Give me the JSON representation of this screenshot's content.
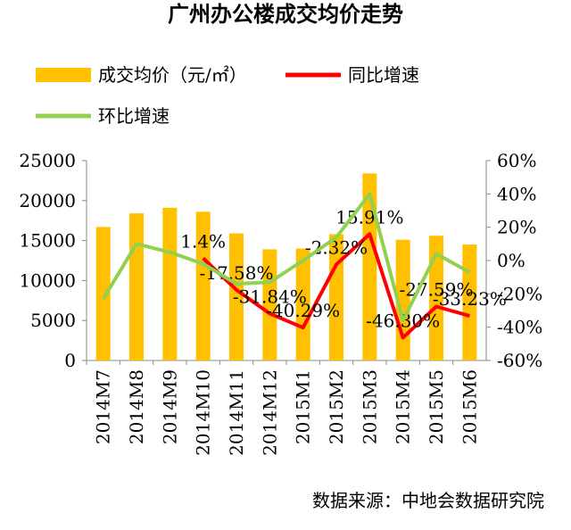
{
  "chart_data": {
    "type": "bar_line",
    "title": "广州办公楼成交均价走势",
    "categories": [
      "2014M7",
      "2014M8",
      "2014M9",
      "2014M10",
      "2014M11",
      "2014M12",
      "2015M1",
      "2015M2",
      "2015M3",
      "2015M4",
      "2015M5",
      "2015M6"
    ],
    "series": [
      {
        "name": "成交均价（元/㎡）",
        "type": "bar",
        "color": "#ffc000",
        "values": [
          16700,
          18400,
          19100,
          18600,
          15900,
          13900,
          14000,
          15800,
          23400,
          15100,
          15600,
          14500
        ]
      },
      {
        "name": "同比增速",
        "type": "line",
        "axis": "y2",
        "color": "#ff0000",
        "values": [
          null,
          null,
          null,
          1.4,
          -17.58,
          -31.84,
          -40.29,
          -2.32,
          15.91,
          -46.3,
          -27.59,
          -33.23
        ],
        "value_labels": [
          null,
          null,
          null,
          "1.4%",
          "-17.58%",
          "-31.84%",
          "-40.29%",
          "-2.32%",
          "15.91%",
          "-46.30%",
          "-27.59%",
          "-33.23%"
        ]
      },
      {
        "name": "环比增速",
        "type": "line",
        "axis": "y2",
        "color": "#92d050",
        "values": [
          -23,
          10,
          5,
          -2,
          -14,
          -13,
          0,
          14,
          40,
          -36,
          4,
          -7
        ]
      }
    ],
    "ylim": [
      0,
      25000
    ],
    "yticks": [
      0,
      5000,
      10000,
      15000,
      20000,
      25000
    ],
    "y2lim": [
      -60,
      60
    ],
    "y2ticks": [
      {
        "value": -60,
        "label": "-60%"
      },
      {
        "value": -40,
        "label": "-40%"
      },
      {
        "value": -20,
        "label": "-20%"
      },
      {
        "value": 0,
        "label": "0%"
      },
      {
        "value": 20,
        "label": "20%"
      },
      {
        "value": 40,
        "label": "40%"
      },
      {
        "value": 60,
        "label": "60%"
      }
    ],
    "source": "数据来源：中地会数据研究院"
  }
}
